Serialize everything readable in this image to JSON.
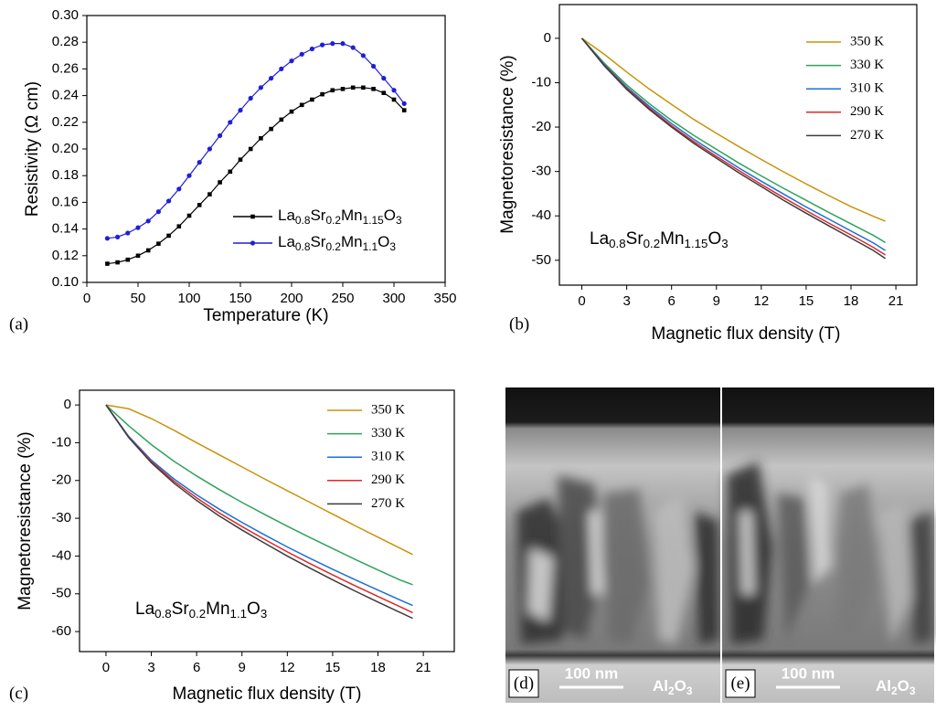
{
  "chart_data": [
    {
      "type": "line",
      "panel_label": "(a)",
      "x_label": "Temperature (K)",
      "y_label": "Resistivity (Ω cm)",
      "x": [
        20,
        30,
        40,
        50,
        60,
        70,
        80,
        90,
        100,
        110,
        120,
        130,
        140,
        150,
        160,
        170,
        180,
        190,
        200,
        210,
        220,
        230,
        240,
        250,
        260,
        270,
        280,
        290,
        300,
        310
      ],
      "series": [
        {
          "name": "La0.8Sr0.2Mn1.15O3",
          "color": "#000000",
          "marker": "square",
          "values": [
            0.114,
            0.115,
            0.117,
            0.12,
            0.124,
            0.129,
            0.135,
            0.142,
            0.15,
            0.158,
            0.166,
            0.175,
            0.183,
            0.192,
            0.2,
            0.208,
            0.215,
            0.222,
            0.228,
            0.233,
            0.237,
            0.241,
            0.244,
            0.245,
            0.246,
            0.246,
            0.245,
            0.242,
            0.237,
            0.229
          ]
        },
        {
          "name": "La0.8Sr0.2Mn1.1O3",
          "color": "#1f1fd6",
          "marker": "circle",
          "values": [
            0.133,
            0.134,
            0.137,
            0.141,
            0.146,
            0.153,
            0.161,
            0.17,
            0.18,
            0.19,
            0.2,
            0.21,
            0.22,
            0.229,
            0.238,
            0.246,
            0.253,
            0.26,
            0.266,
            0.271,
            0.275,
            0.278,
            0.279,
            0.279,
            0.276,
            0.27,
            0.262,
            0.253,
            0.244,
            0.234
          ]
        }
      ],
      "xlim": [
        0,
        350
      ],
      "xticks": [
        0,
        50,
        100,
        150,
        200,
        250,
        300,
        350
      ],
      "ylim": [
        0.1,
        0.3
      ],
      "yticks": [
        {
          "value": 0.1,
          "label": "0.10"
        },
        {
          "value": 0.12,
          "label": "0.12"
        },
        {
          "value": 0.14,
          "label": "0.14"
        },
        {
          "value": 0.16,
          "label": "0.16"
        },
        {
          "value": 0.18,
          "label": "0.18"
        },
        {
          "value": 0.2,
          "label": "0.20"
        },
        {
          "value": 0.22,
          "label": "0.22"
        },
        {
          "value": 0.24,
          "label": "0.24"
        },
        {
          "value": 0.26,
          "label": "0.26"
        },
        {
          "value": 0.28,
          "label": "0.28"
        },
        {
          "value": 0.3,
          "label": "0.30"
        }
      ],
      "legend": "lower right",
      "grid": false
    },
    {
      "type": "line",
      "panel_label": "(b)",
      "x_label": "Magnetic flux density (T)",
      "y_label": "Magnetoresistance (%)",
      "annotation": "La0.8Sr0.2Mn1.15O3",
      "x": [
        0,
        1.5,
        3,
        4.5,
        6,
        7.5,
        9,
        10.5,
        12,
        13.5,
        15,
        16.5,
        18,
        19.5,
        20.3
      ],
      "series": [
        {
          "name": "350 K",
          "color": "#c8930a",
          "values": [
            0,
            -3.6,
            -7.6,
            -11.4,
            -14.9,
            -18.3,
            -21.4,
            -24.4,
            -27.3,
            -30.1,
            -32.8,
            -35.4,
            -37.9,
            -40.1,
            -41.2
          ]
        },
        {
          "name": "330 K",
          "color": "#2fa35a",
          "values": [
            0,
            -5.6,
            -10.5,
            -14.7,
            -18.5,
            -21.9,
            -25.0,
            -28.1,
            -31.0,
            -33.8,
            -36.5,
            -39.2,
            -41.8,
            -44.4,
            -46.0
          ]
        },
        {
          "name": "310 K",
          "color": "#1c6fd6",
          "values": [
            0,
            -5.9,
            -11.0,
            -15.3,
            -19.2,
            -22.8,
            -26.0,
            -29.2,
            -32.2,
            -35.1,
            -38.0,
            -40.7,
            -43.4,
            -46.1,
            -47.8
          ]
        },
        {
          "name": "290 K",
          "color": "#e02828",
          "values": [
            0,
            -6.1,
            -11.3,
            -15.7,
            -19.7,
            -23.3,
            -26.6,
            -29.8,
            -32.9,
            -35.9,
            -38.8,
            -41.6,
            -44.3,
            -47.1,
            -48.8
          ]
        },
        {
          "name": "270 K",
          "color": "#3c3c3c",
          "values": [
            0,
            -6.2,
            -11.5,
            -16.0,
            -20.0,
            -23.7,
            -27.0,
            -30.3,
            -33.4,
            -36.5,
            -39.4,
            -42.2,
            -45.0,
            -47.8,
            -49.6
          ]
        }
      ],
      "xlim": [
        -1.5,
        22.4
      ],
      "xticks": [
        0,
        3,
        6,
        9,
        12,
        15,
        18,
        21
      ],
      "ylim": [
        -55.6,
        7.6
      ],
      "yticks": [
        -50,
        -40,
        -30,
        -20,
        -10,
        0
      ],
      "legend": "upper right",
      "grid": false
    },
    {
      "type": "line",
      "panel_label": "(c)",
      "x_label": "Magnetic flux density (T)",
      "y_label": "Magnetoresistance (%)",
      "annotation": "La0.8Sr0.2Mn1.1O3",
      "x": [
        0,
        1.5,
        3,
        4.5,
        6,
        7.5,
        9,
        10.5,
        12,
        13.5,
        15,
        16.5,
        18,
        19.5,
        20.3
      ],
      "series": [
        {
          "name": "350 K",
          "color": "#c8930a",
          "values": [
            0,
            -1.0,
            -3.6,
            -6.7,
            -10.0,
            -13.2,
            -16.4,
            -19.6,
            -22.7,
            -25.8,
            -28.9,
            -32.0,
            -35.0,
            -38.0,
            -39.6
          ]
        },
        {
          "name": "330 K",
          "color": "#2fa35a",
          "values": [
            0,
            -5.5,
            -10.5,
            -14.9,
            -18.8,
            -22.4,
            -25.8,
            -29.0,
            -32.1,
            -35.1,
            -38.0,
            -40.9,
            -43.7,
            -46.4,
            -47.6
          ]
        },
        {
          "name": "310 K",
          "color": "#1c6fd6",
          "values": [
            0,
            -8.3,
            -14.6,
            -19.6,
            -23.8,
            -27.6,
            -31.1,
            -34.4,
            -37.6,
            -40.6,
            -43.5,
            -46.3,
            -49.0,
            -51.7,
            -53.1
          ]
        },
        {
          "name": "290 K",
          "color": "#e02828",
          "values": [
            0,
            -8.5,
            -15.0,
            -20.2,
            -24.6,
            -28.6,
            -32.2,
            -35.6,
            -38.9,
            -42.0,
            -45.0,
            -47.9,
            -50.7,
            -53.5,
            -55.0
          ]
        },
        {
          "name": "270 K",
          "color": "#3c3c3c",
          "values": [
            0,
            -8.6,
            -15.3,
            -20.7,
            -25.3,
            -29.4,
            -33.1,
            -36.6,
            -40.0,
            -43.2,
            -46.3,
            -49.3,
            -52.2,
            -55.0,
            -56.5
          ]
        }
      ],
      "xlim": [
        -1.75,
        23.05
      ],
      "xticks": [
        0,
        3,
        6,
        9,
        12,
        15,
        18,
        21
      ],
      "ylim": [
        -65.3,
        3.9
      ],
      "yticks": [
        -60,
        -50,
        -40,
        -30,
        -20,
        -10,
        0
      ],
      "legend": "upper right",
      "grid": false
    }
  ],
  "images": [
    {
      "label": "(d)",
      "scale_bar": "100 nm",
      "substrate": "Al2O3"
    },
    {
      "label": "(e)",
      "scale_bar": "100 nm",
      "substrate": "Al2O3"
    }
  ]
}
